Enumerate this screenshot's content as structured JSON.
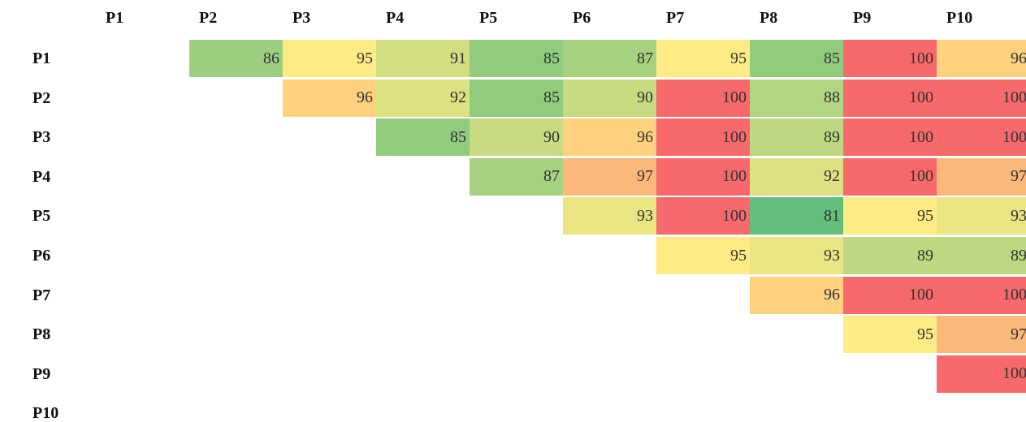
{
  "table": {
    "columns": [
      "P1",
      "P2",
      "P3",
      "P4",
      "P5",
      "P6",
      "P7",
      "P8",
      "P9",
      "P10"
    ],
    "rows": [
      {
        "label": "P1",
        "cells": [
          null,
          86,
          95,
          91,
          85,
          87,
          95,
          85,
          100,
          96
        ]
      },
      {
        "label": "P2",
        "cells": [
          null,
          null,
          96,
          92,
          85,
          90,
          100,
          88,
          100,
          100
        ]
      },
      {
        "label": "P3",
        "cells": [
          null,
          null,
          null,
          85,
          90,
          96,
          100,
          89,
          100,
          100
        ]
      },
      {
        "label": "P4",
        "cells": [
          null,
          null,
          null,
          null,
          87,
          97,
          100,
          92,
          100,
          97
        ]
      },
      {
        "label": "P5",
        "cells": [
          null,
          null,
          null,
          null,
          null,
          93,
          100,
          81,
          95,
          93
        ]
      },
      {
        "label": "P6",
        "cells": [
          null,
          null,
          null,
          null,
          null,
          null,
          95,
          93,
          89,
          89
        ]
      },
      {
        "label": "P7",
        "cells": [
          null,
          null,
          null,
          null,
          null,
          null,
          null,
          96,
          100,
          100
        ]
      },
      {
        "label": "P8",
        "cells": [
          null,
          null,
          null,
          null,
          null,
          null,
          null,
          null,
          95,
          97
        ]
      },
      {
        "label": "P9",
        "cells": [
          null,
          null,
          null,
          null,
          null,
          null,
          null,
          null,
          null,
          100
        ]
      },
      {
        "label": "P10",
        "cells": [
          null,
          null,
          null,
          null,
          null,
          null,
          null,
          null,
          null,
          null
        ]
      }
    ],
    "color_scale": {
      "min": "#63be7b",
      "mid": "#ffeb84",
      "max": "#f8696b"
    }
  }
}
